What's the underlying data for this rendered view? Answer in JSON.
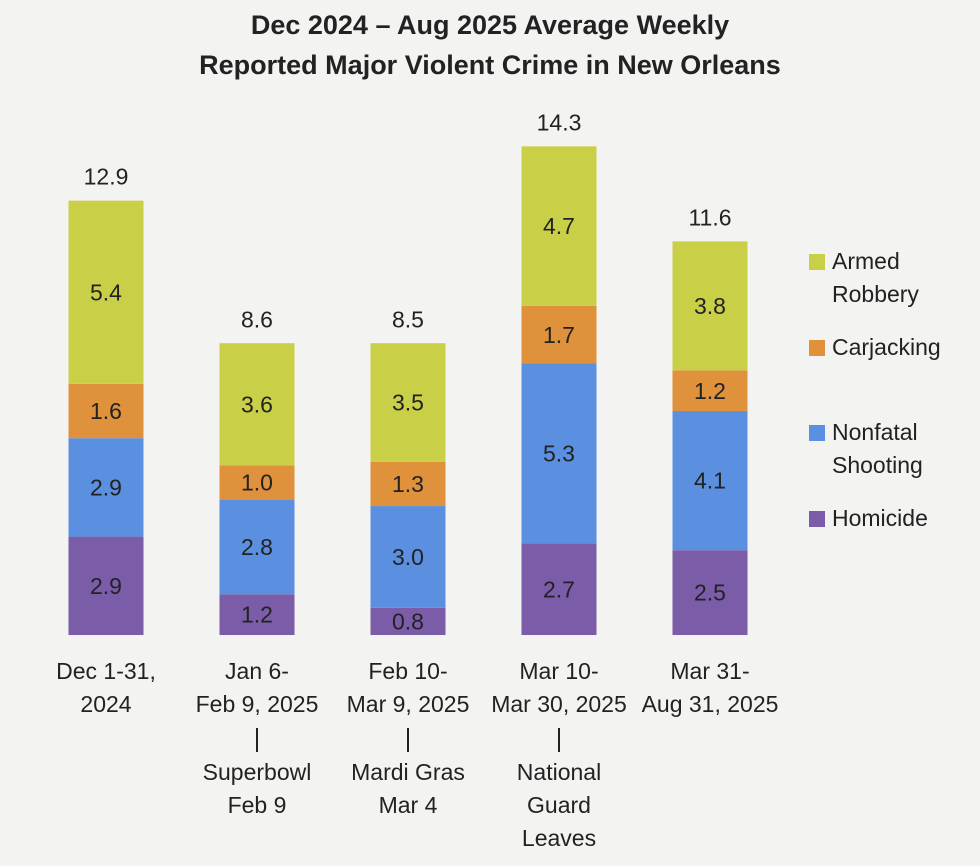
{
  "chart_data": {
    "type": "stacked-bar",
    "title": [
      "Dec 2024 – Aug 2025 Average Weekly",
      "Reported Major Violent Crime in New Orleans"
    ],
    "categories": [
      [
        "Dec 1-31,",
        "2024"
      ],
      [
        "Jan 6-",
        "Feb 9, 2025"
      ],
      [
        "Feb 10-",
        "Mar 9, 2025"
      ],
      [
        "Mar 10-",
        "Mar 30, 2025"
      ],
      [
        "Mar 31-",
        "Aug 31, 2025"
      ]
    ],
    "annotations": [
      null,
      [
        "Superbowl",
        "Feb 9"
      ],
      [
        "Mardi Gras",
        "Mar 4"
      ],
      [
        "National",
        "Guard",
        "Leaves"
      ],
      null
    ],
    "totals": [
      12.9,
      8.6,
      8.5,
      14.3,
      11.6
    ],
    "ylim": [
      0,
      15
    ],
    "series": [
      {
        "name": "Homicide",
        "color": "#7a5ca8",
        "values": [
          2.9,
          1.2,
          0.8,
          2.7,
          2.5
        ],
        "value_labels": [
          "2.9",
          "1.2",
          "0.8",
          "2.7",
          "2.5"
        ]
      },
      {
        "name": "Nonfatal Shooting",
        "color": "#5b8fe0",
        "values": [
          2.9,
          2.8,
          3.0,
          5.3,
          4.1
        ],
        "value_labels": [
          "2.9",
          "2.8",
          "3.0",
          "5.3",
          "4.1"
        ]
      },
      {
        "name": "Carjacking",
        "color": "#e0913b",
        "values": [
          1.6,
          1.0,
          1.3,
          1.7,
          1.2
        ],
        "value_labels": [
          "1.6",
          "1.0",
          "1.3",
          "1.7",
          "1.2"
        ]
      },
      {
        "name": "Armed Robbery",
        "color": "#c9d047",
        "values": [
          5.4,
          3.6,
          3.5,
          4.7,
          3.8
        ],
        "value_labels": [
          "5.4",
          "3.6",
          "3.5",
          "4.7",
          "3.8"
        ]
      }
    ],
    "legend": "right"
  }
}
